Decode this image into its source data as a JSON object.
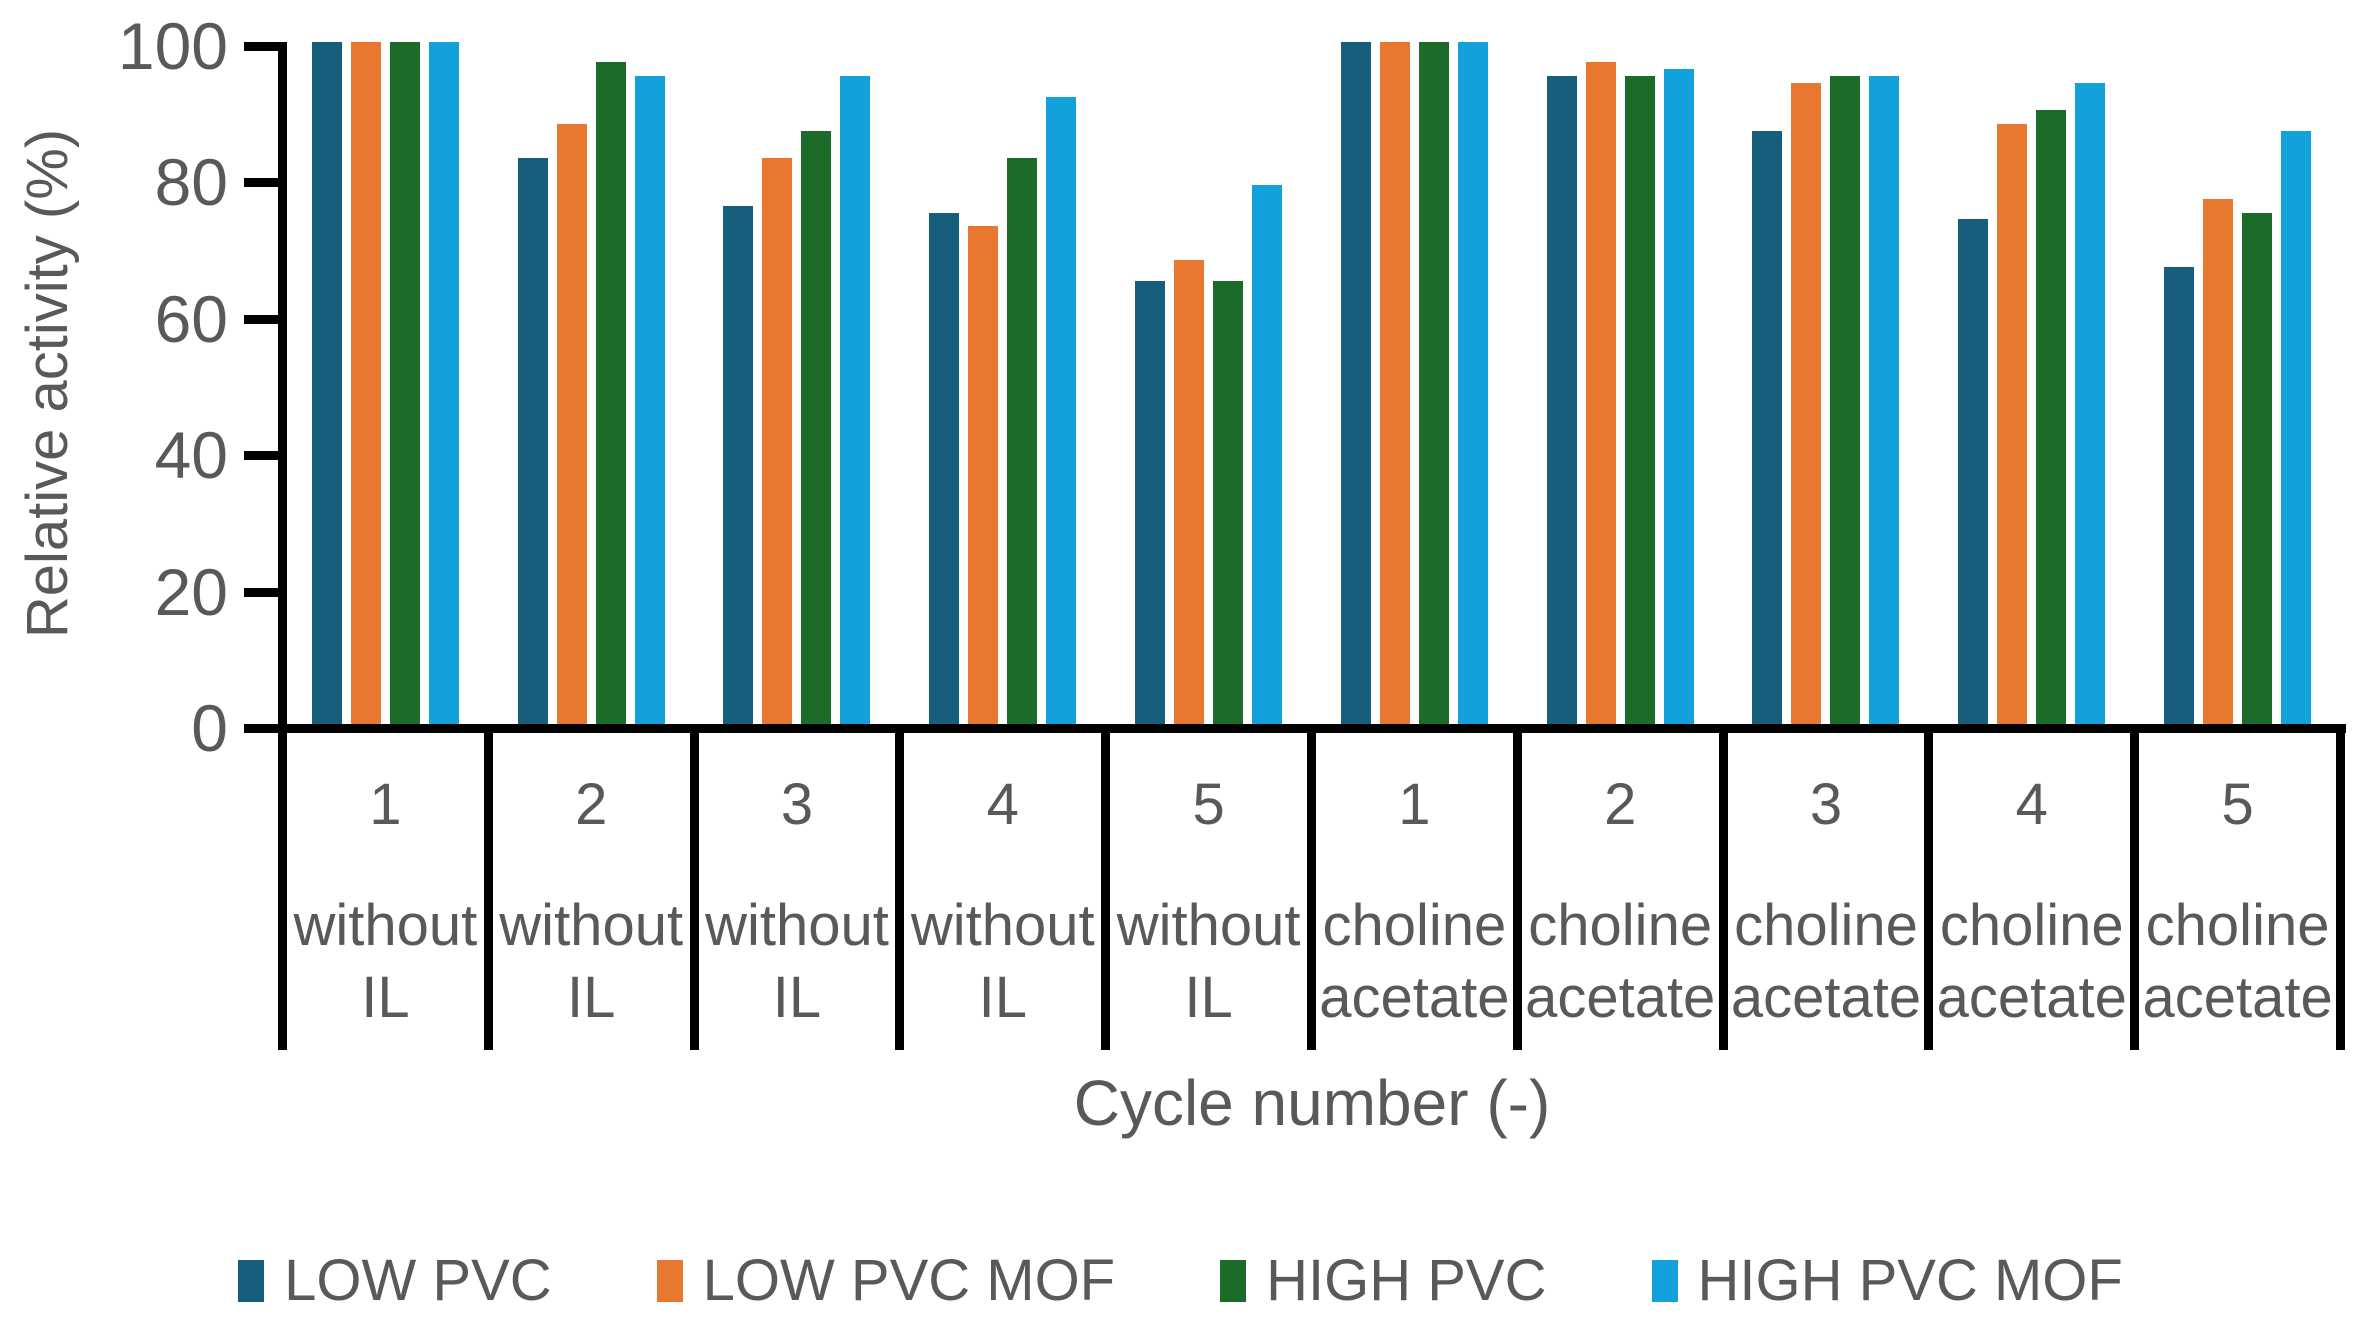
{
  "chart_data": {
    "type": "bar",
    "title": "",
    "xlabel": "Cycle number (-)",
    "ylabel": "Relative activity (%)",
    "ylim": [
      0,
      100
    ],
    "yticks": [
      0,
      20,
      40,
      60,
      80,
      100
    ],
    "grid": false,
    "legend_position": "bottom",
    "axis_color": "#000000",
    "text_color": "#595959",
    "categories": [
      {
        "cycle": "1",
        "condition_lines": [
          "without",
          "IL"
        ]
      },
      {
        "cycle": "2",
        "condition_lines": [
          "without",
          "IL"
        ]
      },
      {
        "cycle": "3",
        "condition_lines": [
          "without",
          "IL"
        ]
      },
      {
        "cycle": "4",
        "condition_lines": [
          "without",
          "IL"
        ]
      },
      {
        "cycle": "5",
        "condition_lines": [
          "without",
          "IL"
        ]
      },
      {
        "cycle": "1",
        "condition_lines": [
          "choline",
          "acetate"
        ]
      },
      {
        "cycle": "2",
        "condition_lines": [
          "choline",
          "acetate"
        ]
      },
      {
        "cycle": "3",
        "condition_lines": [
          "choline",
          "acetate"
        ]
      },
      {
        "cycle": "4",
        "condition_lines": [
          "choline",
          "acetate"
        ]
      },
      {
        "cycle": "5",
        "condition_lines": [
          "choline",
          "acetate"
        ]
      }
    ],
    "series": [
      {
        "name": "LOW PVC",
        "color": "#175E7D",
        "values": [
          100,
          83,
          76,
          75,
          65,
          100,
          95,
          87,
          74,
          67
        ]
      },
      {
        "name": "LOW PVC MOF",
        "color": "#E8782F",
        "values": [
          100,
          88,
          83,
          73,
          68,
          100,
          97,
          94,
          88,
          77
        ]
      },
      {
        "name": "HIGH PVC",
        "color": "#1D6B29",
        "values": [
          100,
          97,
          87,
          83,
          65,
          100,
          95,
          95,
          90,
          75
        ]
      },
      {
        "name": "HIGH PVC MOF",
        "color": "#12A1DA",
        "values": [
          100,
          95,
          95,
          92,
          79,
          100,
          96,
          95,
          94,
          87
        ]
      }
    ]
  }
}
